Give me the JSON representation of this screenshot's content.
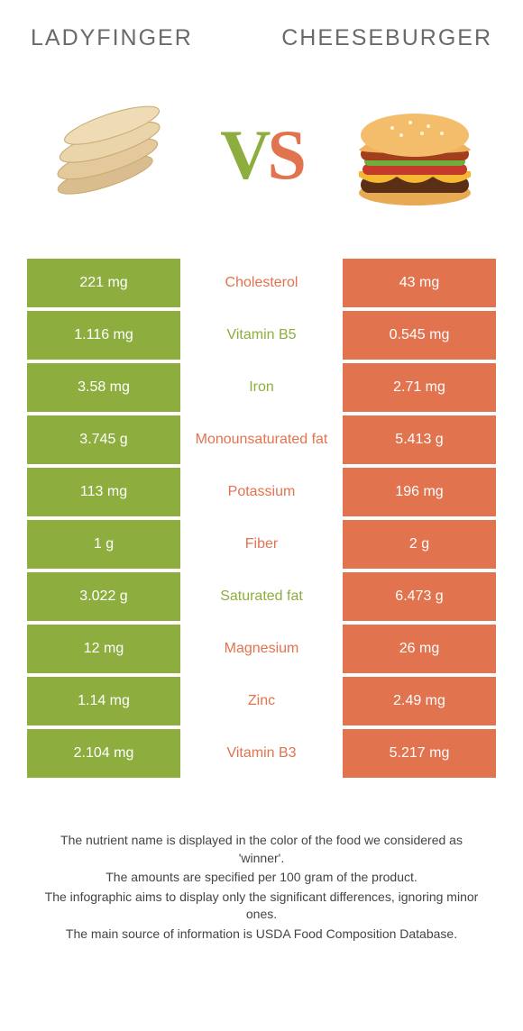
{
  "header": {
    "left_title": "LADYFINGER",
    "right_title": "CHEESEBURGER"
  },
  "vs": {
    "v": "V",
    "s": "S"
  },
  "colors": {
    "left": "#8dae3e",
    "right": "#e2734f",
    "text": "#6a6a6a"
  },
  "rows": [
    {
      "left": "221 mg",
      "label": "Cholesterol",
      "winner": "right",
      "right": "43 mg"
    },
    {
      "left": "1.116 mg",
      "label": "Vitamin B5",
      "winner": "left",
      "right": "0.545 mg"
    },
    {
      "left": "3.58 mg",
      "label": "Iron",
      "winner": "left",
      "right": "2.71 mg"
    },
    {
      "left": "3.745 g",
      "label": "Monounsaturated fat",
      "winner": "right",
      "right": "5.413 g"
    },
    {
      "left": "113 mg",
      "label": "Potassium",
      "winner": "right",
      "right": "196 mg"
    },
    {
      "left": "1 g",
      "label": "Fiber",
      "winner": "right",
      "right": "2 g"
    },
    {
      "left": "3.022 g",
      "label": "Saturated fat",
      "winner": "left",
      "right": "6.473 g"
    },
    {
      "left": "12 mg",
      "label": "Magnesium",
      "winner": "right",
      "right": "26 mg"
    },
    {
      "left": "1.14 mg",
      "label": "Zinc",
      "winner": "right",
      "right": "2.49 mg"
    },
    {
      "left": "2.104 mg",
      "label": "Vitamin B3",
      "winner": "right",
      "right": "5.217 mg"
    }
  ],
  "footnotes": [
    "The nutrient name is displayed in the color of the food we considered as 'winner'.",
    "The amounts are specified per 100 gram of the product.",
    "The infographic aims to display only the significant differences, ignoring minor ones.",
    "The main source of information is USDA Food Composition Database."
  ]
}
